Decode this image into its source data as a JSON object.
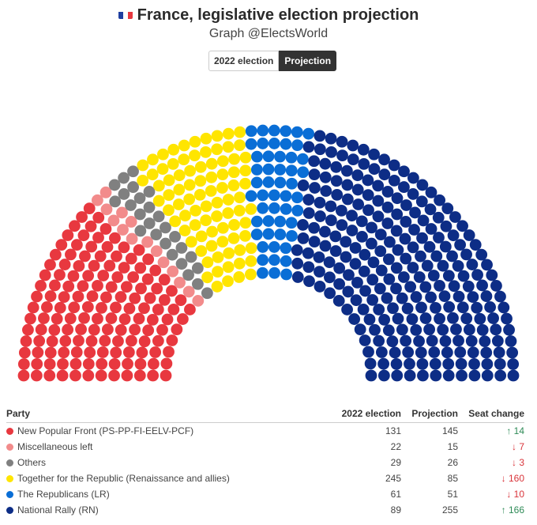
{
  "header": {
    "title": "France, legislative election projection",
    "subtitle": "Graph @ElectsWorld",
    "flag_icon": "french-flag"
  },
  "toggle": {
    "options": [
      "2022 election",
      "Projection"
    ],
    "selected": "Projection"
  },
  "table": {
    "headers": [
      "Party",
      "2022 election",
      "Projection",
      "Seat change"
    ]
  },
  "chart_data": {
    "type": "parliament",
    "title": "France, legislative election projection",
    "total_seats": 577,
    "series": [
      {
        "name": "New Popular Front (PS-PP-FI-EELV-PCF)",
        "color": "#e8383f",
        "election_2022": 131,
        "projection": 145,
        "change": "↑ 14",
        "direction": "up"
      },
      {
        "name": "Miscellaneous left",
        "color": "#f28b8b",
        "election_2022": 22,
        "projection": 15,
        "change": "↓ 7",
        "direction": "down"
      },
      {
        "name": "Others",
        "color": "#808080",
        "election_2022": 29,
        "projection": 26,
        "change": "↓ 3",
        "direction": "down"
      },
      {
        "name": "Together for the Republic (Renaissance and allies)",
        "color": "#ffe500",
        "election_2022": 245,
        "projection": 85,
        "change": "↓ 160",
        "direction": "down"
      },
      {
        "name": "The Republicans (LR)",
        "color": "#0a6ed6",
        "election_2022": 61,
        "projection": 51,
        "change": "↓ 10",
        "direction": "down"
      },
      {
        "name": "National Rally (RN)",
        "color": "#0d2d86",
        "election_2022": 89,
        "projection": 255,
        "change": "↑ 166",
        "direction": "up"
      }
    ]
  }
}
